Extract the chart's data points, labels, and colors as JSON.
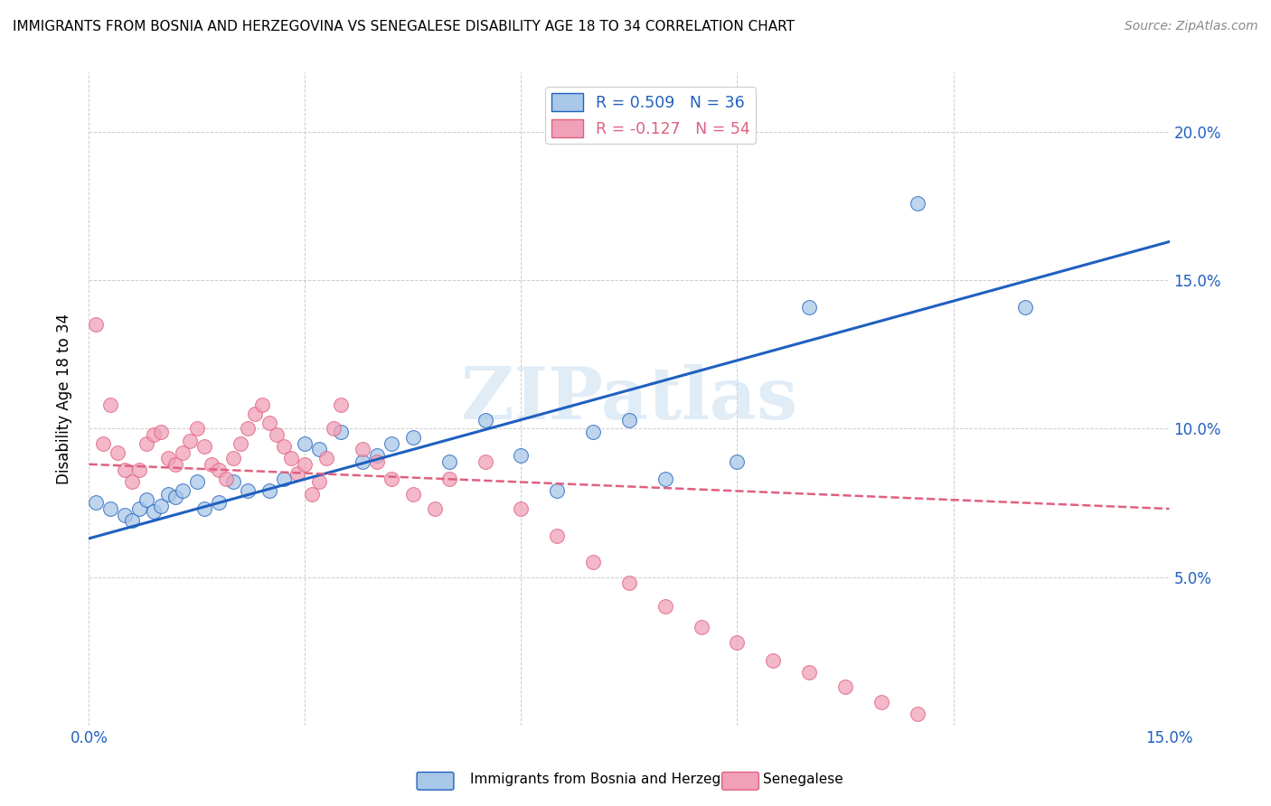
{
  "title": "IMMIGRANTS FROM BOSNIA AND HERZEGOVINA VS SENEGALESE DISABILITY AGE 18 TO 34 CORRELATION CHART",
  "source": "Source: ZipAtlas.com",
  "ylabel": "Disability Age 18 to 34",
  "xlim": [
    0.0,
    0.15
  ],
  "ylim": [
    0.0,
    0.22
  ],
  "xticks": [
    0.0,
    0.03,
    0.06,
    0.09,
    0.12,
    0.15
  ],
  "yticks": [
    0.0,
    0.05,
    0.1,
    0.15,
    0.2
  ],
  "ytick_labels_right": [
    "",
    "5.0%",
    "10.0%",
    "15.0%",
    "20.0%"
  ],
  "xtick_labels": [
    "0.0%",
    "",
    "",
    "",
    "",
    "15.0%"
  ],
  "watermark": "ZIPatlas",
  "legend_blue_r": "R = 0.509",
  "legend_blue_n": "N = 36",
  "legend_pink_r": "R = -0.127",
  "legend_pink_n": "N = 54",
  "bosnia_color": "#a8c8e8",
  "senegal_color": "#f0a0b8",
  "bosnia_line_color": "#2060c0",
  "senegal_line_color": "#e06080",
  "background_color": "#ffffff",
  "grid_color": "#c8c8c8",
  "bosnia_points_x": [
    0.001,
    0.003,
    0.005,
    0.006,
    0.007,
    0.008,
    0.009,
    0.01,
    0.011,
    0.012,
    0.013,
    0.015,
    0.016,
    0.018,
    0.02,
    0.022,
    0.025,
    0.027,
    0.03,
    0.032,
    0.035,
    0.038,
    0.04,
    0.042,
    0.045,
    0.05,
    0.055,
    0.06,
    0.065,
    0.07,
    0.075,
    0.08,
    0.09,
    0.1,
    0.115,
    0.13
  ],
  "bosnia_points_y": [
    0.075,
    0.073,
    0.071,
    0.069,
    0.073,
    0.076,
    0.072,
    0.074,
    0.078,
    0.077,
    0.079,
    0.082,
    0.073,
    0.075,
    0.082,
    0.079,
    0.079,
    0.083,
    0.095,
    0.093,
    0.099,
    0.089,
    0.091,
    0.095,
    0.097,
    0.089,
    0.103,
    0.091,
    0.079,
    0.099,
    0.103,
    0.083,
    0.089,
    0.141,
    0.176,
    0.141
  ],
  "senegal_points_x": [
    0.001,
    0.002,
    0.003,
    0.004,
    0.005,
    0.006,
    0.007,
    0.008,
    0.009,
    0.01,
    0.011,
    0.012,
    0.013,
    0.014,
    0.015,
    0.016,
    0.017,
    0.018,
    0.019,
    0.02,
    0.021,
    0.022,
    0.023,
    0.024,
    0.025,
    0.026,
    0.027,
    0.028,
    0.029,
    0.03,
    0.031,
    0.032,
    0.033,
    0.034,
    0.035,
    0.038,
    0.04,
    0.042,
    0.045,
    0.048,
    0.05,
    0.055,
    0.06,
    0.065,
    0.07,
    0.075,
    0.08,
    0.085,
    0.09,
    0.095,
    0.1,
    0.105,
    0.11,
    0.115
  ],
  "senegal_points_y": [
    0.135,
    0.095,
    0.108,
    0.092,
    0.086,
    0.082,
    0.086,
    0.095,
    0.098,
    0.099,
    0.09,
    0.088,
    0.092,
    0.096,
    0.1,
    0.094,
    0.088,
    0.086,
    0.083,
    0.09,
    0.095,
    0.1,
    0.105,
    0.108,
    0.102,
    0.098,
    0.094,
    0.09,
    0.085,
    0.088,
    0.078,
    0.082,
    0.09,
    0.1,
    0.108,
    0.093,
    0.089,
    0.083,
    0.078,
    0.073,
    0.083,
    0.089,
    0.073,
    0.064,
    0.055,
    0.048,
    0.04,
    0.033,
    0.028,
    0.022,
    0.018,
    0.013,
    0.008,
    0.004
  ],
  "bosnia_line_x": [
    0.0,
    0.15
  ],
  "bosnia_line_y": [
    0.063,
    0.163
  ],
  "senegal_line_x": [
    0.0,
    0.15
  ],
  "senegal_line_y": [
    0.088,
    0.073
  ]
}
